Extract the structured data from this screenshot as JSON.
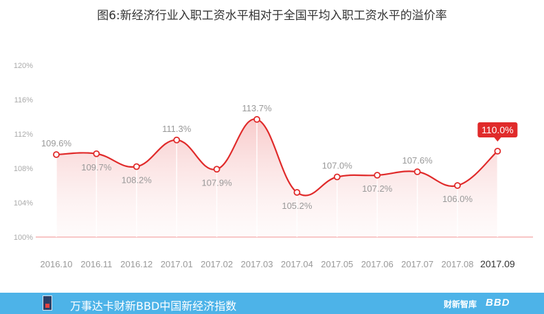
{
  "title": "图6:新经济行业入职工资水平相对于全国平均入职工资水平的溢价率",
  "chart_data": {
    "type": "line",
    "title": "图6:新经济行业入职工资水平相对于全国平均入职工资水平的溢价率",
    "categories": [
      "2016.10",
      "2016.11",
      "2016.12",
      "2017.01",
      "2017.02",
      "2017.03",
      "2017.04",
      "2017.05",
      "2017.06",
      "2017.07",
      "2017.08",
      "2017.09"
    ],
    "values": [
      109.6,
      109.7,
      108.2,
      111.3,
      107.9,
      113.7,
      105.2,
      107.0,
      107.2,
      107.6,
      106.0,
      110.0
    ],
    "value_labels": [
      "109.6%",
      "109.7%",
      "108.2%",
      "111.3%",
      "107.9%",
      "113.7%",
      "105.2%",
      "107.0%",
      "107.2%",
      "107.6%",
      "106.0%",
      "110.0%"
    ],
    "y_ticks": [
      "100%",
      "104%",
      "108%",
      "112%",
      "116%",
      "120%"
    ],
    "y_tick_values": [
      100,
      104,
      108,
      112,
      116,
      120
    ],
    "ylim": [
      100,
      120
    ],
    "xlabel": "",
    "ylabel": "",
    "grid": false,
    "highlight_last": true,
    "colors": {
      "line": "#e02a2a",
      "fill": "#f7c3c3",
      "axis": "#f08b8b",
      "highlight_bg": "#e02a2a",
      "text": "#999999"
    }
  },
  "footer": {
    "text": "万事达卡财新BBD中国新经济指数",
    "brand": "财新智库",
    "brand2": "BBD",
    "bg_color": "#4db3e8"
  }
}
